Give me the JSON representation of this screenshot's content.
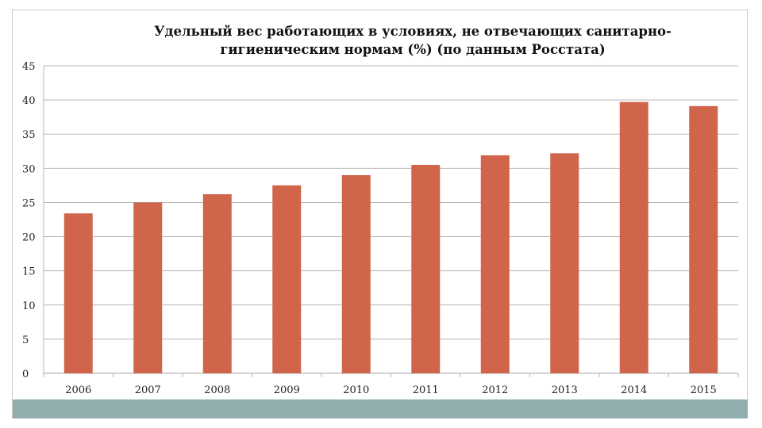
{
  "chart_data": {
    "type": "bar",
    "title_lines": [
      "Удельный вес работающих в условиях, не отвечающих санитарно-",
      "гигиеническим нормам (%) (по данным Росстата)"
    ],
    "categories": [
      "2006",
      "2007",
      "2008",
      "2009",
      "2010",
      "2011",
      "2012",
      "2013",
      "2014",
      "2015"
    ],
    "values": [
      23.4,
      25.0,
      26.2,
      27.5,
      29.0,
      30.5,
      31.9,
      32.2,
      39.7,
      39.1
    ],
    "ylim": [
      0,
      45
    ],
    "yticks": [
      "0",
      "5",
      "10",
      "15",
      "20",
      "25",
      "30",
      "35",
      "40",
      "45"
    ],
    "grid": true,
    "bar_color": "#d0654b",
    "grid_color": "#b8b8b8"
  }
}
